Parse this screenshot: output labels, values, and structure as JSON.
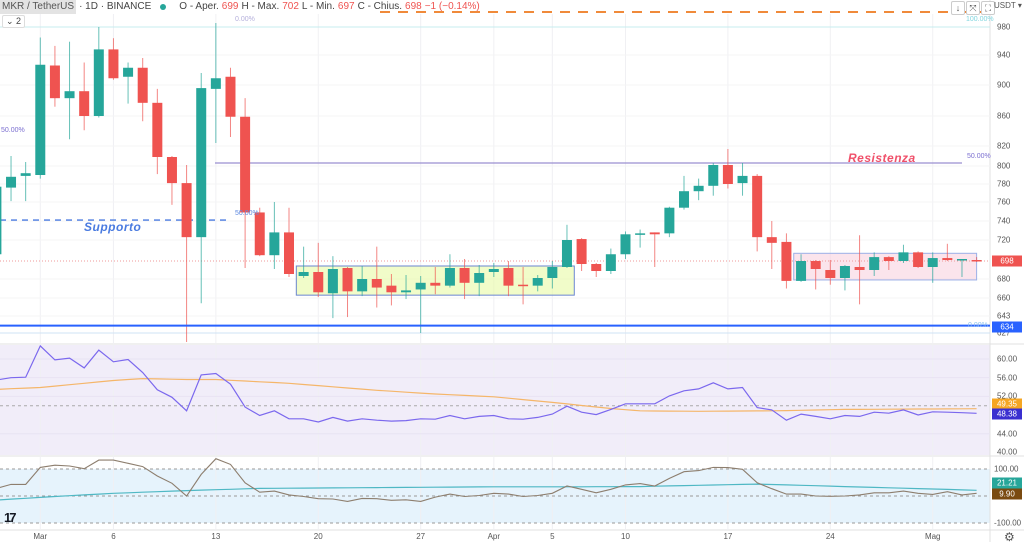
{
  "header": {
    "symbol": "MKR / TetherUS",
    "interval": "· 1D · BINANCE",
    "open_label": "O - Aper.",
    "open": "699",
    "high_label": "H - Max.",
    "high": "702",
    "low_label": "L - Min.",
    "low": "697",
    "close_label": "C - Chius.",
    "close": "698",
    "change": "−1 (−0.14%)",
    "indicators_toggle": "⌄ 2"
  },
  "toolbar": {
    "download_icon": "↓",
    "compress_icon": "⤧",
    "fullscreen_icon": "⛶",
    "currency": "USDT ▾"
  },
  "colors": {
    "up": "#26a69a",
    "down": "#ef5350",
    "support": "#2962ff",
    "rsi": "#7b68ee",
    "rsi_ma": "#f5b66a",
    "cci": "#8d7e6e",
    "cci_ma": "#4fb8c4"
  },
  "price_axis": [
    "980",
    "940",
    "900",
    "860",
    "820",
    "800",
    "780",
    "760",
    "740",
    "720",
    "680",
    "660",
    "643",
    "627"
  ],
  "badges": {
    "last_price": "698",
    "support_price": "634",
    "rsi_ma": "49.35",
    "rsi": "48.38",
    "cci_ma": "21.21",
    "cci": "9.90"
  },
  "rsi_axis": [
    "60.00",
    "56.00",
    "52.00",
    "44.00",
    "40.00"
  ],
  "cci_axis": [
    "100.00",
    "-100.00"
  ],
  "annotations": {
    "resistance": "Resistenza",
    "support": "Supporto"
  },
  "fib_labels": {
    "top_left": "0.00%",
    "top_right": "100.00%",
    "mid_left": "50.00%",
    "mid_center": "50.00%",
    "mid_right": "50.00%",
    "bottom_right": "0.00%"
  },
  "date_labels": [
    {
      "i": 3,
      "t": "Mar"
    },
    {
      "i": 8,
      "t": "6"
    },
    {
      "i": 15,
      "t": "13"
    },
    {
      "i": 22,
      "t": "20"
    },
    {
      "i": 29,
      "t": "27"
    },
    {
      "i": 34,
      "t": "Apr"
    },
    {
      "i": 38,
      "t": "5"
    },
    {
      "i": 43,
      "t": "10"
    },
    {
      "i": 50,
      "t": "17"
    },
    {
      "i": 57,
      "t": "24"
    },
    {
      "i": 64,
      "t": "Mag"
    }
  ],
  "chart_data": {
    "type": "candlestick",
    "ylim": [
      615,
      990
    ],
    "current_price": 698,
    "support_level": 634,
    "resistance_level": 803,
    "support_dashed_level": 741,
    "ranges": [
      {
        "name": "accumulation-range",
        "from": 20.5,
        "to": 39.5,
        "low": 663,
        "high": 693
      },
      {
        "name": "consolidation-range",
        "from": 54.5,
        "to": 67,
        "low": 679,
        "high": 706
      }
    ],
    "ohlc": [
      [
        705,
        780,
        700,
        777
      ],
      [
        776,
        810,
        761,
        788
      ],
      [
        789,
        804,
        761,
        792
      ],
      [
        790,
        965,
        786,
        927
      ],
      [
        926,
        953,
        872,
        883
      ],
      [
        883,
        959,
        829,
        892
      ],
      [
        892,
        930,
        841,
        860
      ],
      [
        860,
        980,
        858,
        948
      ],
      [
        948,
        964,
        907,
        909
      ],
      [
        911,
        930,
        876,
        923
      ],
      [
        923,
        936,
        853,
        877
      ],
      [
        877,
        895,
        791,
        809
      ],
      [
        809,
        810,
        757,
        781
      ],
      [
        781,
        801,
        618,
        723
      ],
      [
        723,
        916,
        655,
        896
      ],
      [
        895,
        985,
        824,
        909
      ],
      [
        911,
        923,
        832,
        859
      ],
      [
        859,
        883,
        691,
        749
      ],
      [
        749,
        754,
        703,
        704
      ],
      [
        704,
        760,
        690,
        728
      ],
      [
        728,
        754,
        682,
        685
      ],
      [
        683,
        713,
        681,
        687
      ],
      [
        687,
        717,
        661,
        666
      ],
      [
        665,
        703,
        641,
        690
      ],
      [
        691,
        692,
        642,
        667
      ],
      [
        667,
        693,
        662,
        680
      ],
      [
        680,
        713,
        651,
        671
      ],
      [
        673,
        685,
        653,
        666
      ],
      [
        666,
        684,
        659,
        668
      ],
      [
        669,
        683,
        627,
        676
      ],
      [
        676,
        692,
        664,
        673
      ],
      [
        673,
        705,
        671,
        691
      ],
      [
        691,
        700,
        659,
        676
      ],
      [
        676,
        694,
        662,
        686
      ],
      [
        687,
        696,
        682,
        690
      ],
      [
        691,
        698,
        662,
        673
      ],
      [
        674,
        692,
        654,
        673
      ],
      [
        673,
        684,
        667,
        681
      ],
      [
        681,
        698,
        670,
        692
      ],
      [
        692,
        736,
        691,
        720
      ],
      [
        721,
        722,
        688,
        695
      ],
      [
        695,
        696,
        682,
        688
      ],
      [
        688,
        711,
        685,
        705
      ],
      [
        705,
        729,
        700,
        726
      ],
      [
        726,
        731,
        712,
        727
      ],
      [
        728,
        728,
        692,
        726
      ],
      [
        727,
        755,
        723,
        754
      ],
      [
        754,
        789,
        752,
        772
      ],
      [
        772,
        786,
        762,
        778
      ],
      [
        778,
        803,
        767,
        801
      ],
      [
        801,
        817,
        775,
        780
      ],
      [
        781,
        803,
        767,
        789
      ],
      [
        789,
        791,
        708,
        723
      ],
      [
        723,
        740,
        690,
        717
      ],
      [
        718,
        727,
        670,
        678
      ],
      [
        678,
        705,
        677,
        698
      ],
      [
        698,
        699,
        669,
        690
      ],
      [
        689,
        699,
        674,
        681
      ],
      [
        681,
        694,
        668,
        693
      ],
      [
        692,
        725,
        654,
        689
      ],
      [
        689,
        707,
        683,
        702
      ],
      [
        702,
        703,
        689,
        698
      ],
      [
        698,
        715,
        696,
        707
      ],
      [
        707,
        708,
        691,
        692
      ],
      [
        692,
        707,
        676,
        701
      ],
      [
        701,
        716,
        698,
        699
      ],
      [
        699,
        700,
        682,
        700
      ],
      [
        699,
        702,
        697,
        698
      ]
    ],
    "rsi": {
      "ylim": [
        40,
        63
      ],
      "values": [
        55.5,
        56,
        56.1,
        62.8,
        59.8,
        60.2,
        58.1,
        61.9,
        59.4,
        59.9,
        57.1,
        53.4,
        51.8,
        48.9,
        56.6,
        56.9,
        54.6,
        49.7,
        47.9,
        48.9,
        47.2,
        47.2,
        46.5,
        47.5,
        46.7,
        47.2,
        46.9,
        46.7,
        46.8,
        47.2,
        47.1,
        47.9,
        47.2,
        47.7,
        47.9,
        47.2,
        47.1,
        47.5,
        48.2,
        49.9,
        48.6,
        48.1,
        49.2,
        50.4,
        50.4,
        50.4,
        52.1,
        53.2,
        53.6,
        54.9,
        53.6,
        53.9,
        49.6,
        49.1,
        46.9,
        48.2,
        47.7,
        47.2,
        47.9,
        47.7,
        48.6,
        48.4,
        49.1,
        48.0,
        48.7,
        48.6,
        48.5,
        48.38
      ],
      "ma_knots": [
        [
          0,
          53.5
        ],
        [
          3,
          53.9
        ],
        [
          8,
          55.4
        ],
        [
          10,
          55.8
        ],
        [
          13,
          55.6
        ],
        [
          15,
          55.6
        ],
        [
          20,
          54.8
        ],
        [
          22,
          54.3
        ],
        [
          26,
          53.3
        ],
        [
          30,
          52.5
        ],
        [
          34,
          51.9
        ],
        [
          38,
          50.7
        ],
        [
          42,
          49.4
        ],
        [
          44,
          48.9
        ],
        [
          48,
          48.8
        ],
        [
          53,
          48.9
        ],
        [
          58,
          49.2
        ],
        [
          67,
          49.35
        ]
      ]
    },
    "cci": {
      "ylim": [
        -125,
        140
      ],
      "values": [
        28,
        43,
        43,
        106,
        114,
        111,
        101,
        133,
        133,
        121,
        109,
        74,
        47,
        0,
        80,
        138,
        117,
        49,
        14,
        18,
        4,
        -2,
        -10,
        -11,
        -20,
        -9,
        -10,
        -16,
        -14,
        -20,
        -4,
        7,
        -2,
        2,
        10,
        7,
        -2,
        2,
        10,
        37,
        25,
        12,
        25,
        41,
        46,
        37,
        65,
        90,
        94,
        106,
        105,
        99,
        49,
        27,
        7,
        7,
        0,
        -1,
        0,
        4,
        12,
        12,
        18,
        10,
        6,
        16,
        4,
        9.9
      ],
      "ma_knots": [
        [
          0,
          -15
        ],
        [
          3,
          -5
        ],
        [
          8,
          10
        ],
        [
          14,
          22
        ],
        [
          18,
          28
        ],
        [
          34,
          34
        ],
        [
          39,
          34
        ],
        [
          44,
          35
        ],
        [
          52,
          44
        ],
        [
          58,
          35
        ],
        [
          67,
          21.21
        ]
      ]
    }
  }
}
